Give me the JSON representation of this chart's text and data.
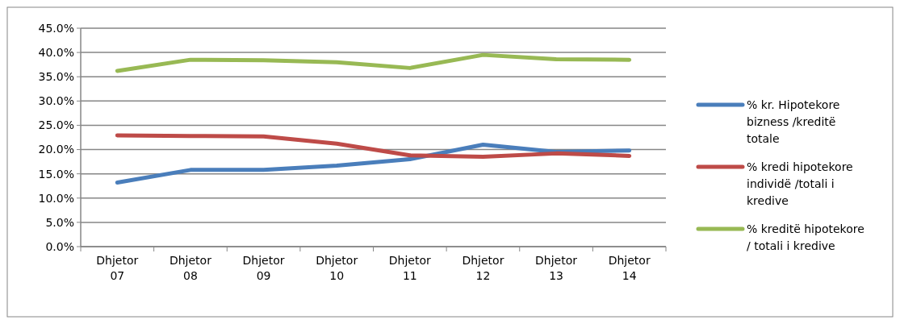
{
  "chart_data": {
    "type": "line",
    "categories": [
      "Dhjetor 07",
      "Dhjetor 08",
      "Dhjetor 09",
      "Dhjetor 10",
      "Dhjetor 11",
      "Dhjetor 12",
      "Dhjetor 13",
      "Dhjetor 14"
    ],
    "series": [
      {
        "name": "% kr. Hipotekore bizness /kreditë totale",
        "color": "#4a7ebb",
        "values": [
          13.2,
          15.8,
          15.8,
          16.7,
          18.0,
          21.0,
          19.5,
          19.8
        ]
      },
      {
        "name": "% kredi hipotekore individë /totali i kredive",
        "color": "#be4b48",
        "values": [
          22.9,
          22.8,
          22.7,
          21.2,
          18.8,
          18.5,
          19.2,
          18.7
        ]
      },
      {
        "name": "% kreditë hipotekore / totali i kredive",
        "color": "#98b954",
        "values": [
          36.2,
          38.5,
          38.4,
          38.0,
          36.8,
          39.5,
          38.6,
          38.5
        ]
      }
    ],
    "ylim": [
      0,
      45
    ],
    "yticks": [
      {
        "value": 0,
        "label": "0.0%"
      },
      {
        "value": 5,
        "label": "5.0%"
      },
      {
        "value": 10,
        "label": "10.0%"
      },
      {
        "value": 15,
        "label": "15.0%"
      },
      {
        "value": 20,
        "label": "20.0%"
      },
      {
        "value": 25,
        "label": "25.0%"
      },
      {
        "value": 30,
        "label": "30.0%"
      },
      {
        "value": 35,
        "label": "35.0%"
      },
      {
        "value": 40,
        "label": "40.0%"
      },
      {
        "value": 45,
        "label": "45.0%"
      }
    ],
    "grid": "y",
    "legend": "right",
    "marker": "none",
    "line_style": "solid"
  }
}
